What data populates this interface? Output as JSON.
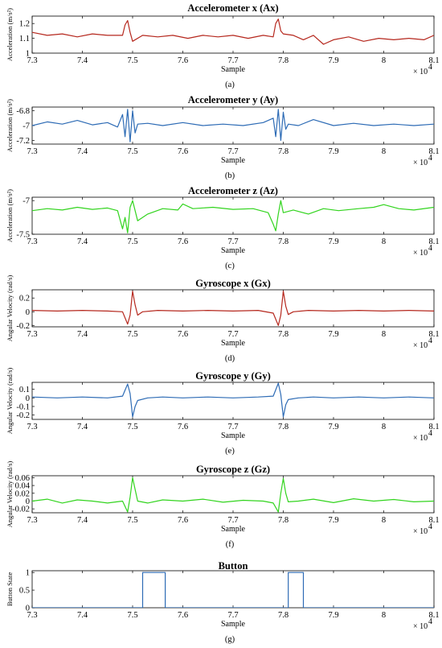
{
  "chart_data": [
    {
      "type": "line",
      "title": "Accelerometer x (Ax)",
      "xlabel": "Sample",
      "ylabel": "Acceleration (m/s²)",
      "x_multiplier": "× 10",
      "x_exponent": "4",
      "caption": "(a)",
      "xlim": [
        7.3,
        8.1
      ],
      "ylim": [
        1.0,
        1.25
      ],
      "xticks": [
        "7.3",
        "7.4",
        "7.5",
        "7.6",
        "7.7",
        "7.8",
        "7.9",
        "8",
        "8.1"
      ],
      "yticks": [
        "1",
        "1.1",
        "1.2"
      ],
      "ytick_values": [
        1.0,
        1.1,
        1.2
      ],
      "color": "#b5271d",
      "series": [
        {
          "x": [
            7.3,
            7.33,
            7.36,
            7.39,
            7.42,
            7.45,
            7.48,
            7.485,
            7.49,
            7.495,
            7.5,
            7.52,
            7.55,
            7.58,
            7.61,
            7.64,
            7.67,
            7.7,
            7.73,
            7.76,
            7.78,
            7.785,
            7.79,
            7.795,
            7.8,
            7.82,
            7.84,
            7.86,
            7.88,
            7.9,
            7.93,
            7.96,
            7.99,
            8.02,
            8.05,
            8.08,
            8.1
          ],
          "values": [
            1.14,
            1.12,
            1.13,
            1.11,
            1.13,
            1.12,
            1.12,
            1.19,
            1.22,
            1.14,
            1.08,
            1.12,
            1.11,
            1.12,
            1.1,
            1.12,
            1.11,
            1.12,
            1.1,
            1.12,
            1.11,
            1.2,
            1.23,
            1.15,
            1.13,
            1.12,
            1.09,
            1.12,
            1.06,
            1.09,
            1.11,
            1.08,
            1.1,
            1.09,
            1.1,
            1.09,
            1.12
          ]
        }
      ]
    },
    {
      "type": "line",
      "title": "Accelerometer y (Ay)",
      "xlabel": "Sample",
      "ylabel": "Acceleration (m/s²)",
      "x_multiplier": "× 10",
      "x_exponent": "4",
      "caption": "(b)",
      "xlim": [
        7.3,
        8.1
      ],
      "ylim": [
        -7.25,
        -6.75
      ],
      "xticks": [
        "7.3",
        "7.4",
        "7.5",
        "7.6",
        "7.7",
        "7.8",
        "7.9",
        "8",
        "8.1"
      ],
      "yticks": [
        "-6.8",
        "-7",
        "-7.2"
      ],
      "ytick_values": [
        -6.8,
        -7.0,
        -7.2
      ],
      "color": "#2d6bb5",
      "series": [
        {
          "x": [
            7.3,
            7.33,
            7.36,
            7.39,
            7.42,
            7.45,
            7.47,
            7.48,
            7.485,
            7.49,
            7.495,
            7.5,
            7.505,
            7.51,
            7.53,
            7.56,
            7.6,
            7.64,
            7.68,
            7.72,
            7.76,
            7.78,
            7.785,
            7.79,
            7.795,
            7.8,
            7.805,
            7.81,
            7.83,
            7.86,
            7.9,
            7.94,
            7.98,
            8.02,
            8.06,
            8.1
          ],
          "values": [
            -7.0,
            -6.95,
            -6.98,
            -6.93,
            -6.99,
            -6.96,
            -7.02,
            -6.85,
            -7.15,
            -6.78,
            -7.22,
            -6.8,
            -7.1,
            -6.98,
            -6.97,
            -7.0,
            -6.96,
            -7.0,
            -6.98,
            -7.0,
            -6.96,
            -6.9,
            -7.15,
            -6.78,
            -7.2,
            -6.82,
            -7.05,
            -6.98,
            -7.0,
            -6.92,
            -7.0,
            -6.97,
            -7.0,
            -6.98,
            -7.0,
            -6.98
          ]
        }
      ]
    },
    {
      "type": "line",
      "title": "Accelerometer z (Az)",
      "xlabel": "Sample",
      "ylabel": "Acceleration (m/s²)",
      "x_multiplier": "× 10",
      "x_exponent": "4",
      "caption": "(c)",
      "xlim": [
        7.3,
        8.1
      ],
      "ylim": [
        -7.5,
        -6.95
      ],
      "xticks": [
        "7.3",
        "7.4",
        "7.5",
        "7.6",
        "7.7",
        "7.8",
        "7.9",
        "8",
        "8.1"
      ],
      "yticks": [
        "-7",
        "-7.5"
      ],
      "ytick_values": [
        -7.0,
        -7.5
      ],
      "color": "#32d41e",
      "series": [
        {
          "x": [
            7.3,
            7.33,
            7.36,
            7.39,
            7.42,
            7.45,
            7.47,
            7.48,
            7.485,
            7.49,
            7.495,
            7.5,
            7.51,
            7.53,
            7.56,
            7.59,
            7.6,
            7.62,
            7.66,
            7.7,
            7.74,
            7.77,
            7.78,
            7.785,
            7.79,
            7.795,
            7.8,
            7.82,
            7.85,
            7.88,
            7.91,
            7.95,
            7.98,
            8.0,
            8.03,
            8.06,
            8.1
          ],
          "values": [
            -7.15,
            -7.12,
            -7.14,
            -7.1,
            -7.13,
            -7.11,
            -7.15,
            -7.42,
            -7.25,
            -7.48,
            -7.1,
            -7.0,
            -7.3,
            -7.2,
            -7.12,
            -7.14,
            -7.05,
            -7.12,
            -7.1,
            -7.13,
            -7.12,
            -7.18,
            -7.35,
            -7.45,
            -7.2,
            -7.0,
            -7.18,
            -7.14,
            -7.2,
            -7.12,
            -7.15,
            -7.12,
            -7.1,
            -7.06,
            -7.12,
            -7.14,
            -7.1
          ]
        }
      ]
    },
    {
      "type": "line",
      "title": "Gyroscope x (Gx)",
      "xlabel": "Sample",
      "ylabel": "Angular Velocity (rad/s)",
      "x_multiplier": "× 10",
      "x_exponent": "4",
      "caption": "(d)",
      "xlim": [
        7.3,
        8.1
      ],
      "ylim": [
        -0.22,
        0.32
      ],
      "xticks": [
        "7.3",
        "7.4",
        "7.5",
        "7.6",
        "7.7",
        "7.8",
        "7.9",
        "8",
        "8.1"
      ],
      "yticks": [
        "0.2",
        "0",
        "-0.2"
      ],
      "ytick_values": [
        0.2,
        0.0,
        -0.2
      ],
      "color": "#b5271d",
      "series": [
        {
          "x": [
            7.3,
            7.35,
            7.4,
            7.45,
            7.48,
            7.49,
            7.495,
            7.5,
            7.505,
            7.51,
            7.52,
            7.55,
            7.6,
            7.65,
            7.7,
            7.75,
            7.78,
            7.79,
            7.795,
            7.8,
            7.805,
            7.81,
            7.82,
            7.85,
            7.9,
            7.95,
            8.0,
            8.05,
            8.1
          ],
          "values": [
            0.02,
            0.01,
            0.02,
            0.01,
            0.0,
            -0.18,
            -0.05,
            0.3,
            0.1,
            -0.05,
            0.0,
            0.02,
            0.01,
            0.02,
            0.01,
            0.02,
            -0.02,
            -0.2,
            -0.05,
            0.3,
            0.08,
            -0.04,
            0.0,
            0.02,
            0.01,
            0.02,
            0.01,
            0.02,
            0.01
          ]
        }
      ]
    },
    {
      "type": "line",
      "title": "Gyroscope y (Gy)",
      "xlabel": "Sample",
      "ylabel": "Angular Velocity (rad/s)",
      "x_multiplier": "× 10",
      "x_exponent": "4",
      "caption": "(e)",
      "xlim": [
        7.3,
        8.1
      ],
      "ylim": [
        -0.25,
        0.18
      ],
      "xticks": [
        "7.3",
        "7.4",
        "7.5",
        "7.6",
        "7.7",
        "7.8",
        "7.9",
        "8",
        "8.1"
      ],
      "yticks": [
        "0.1",
        "0",
        "-0.1",
        "-0.2"
      ],
      "ytick_values": [
        0.1,
        0.0,
        -0.1,
        -0.2
      ],
      "color": "#2d6bb5",
      "series": [
        {
          "x": [
            7.3,
            7.35,
            7.4,
            7.45,
            7.48,
            7.49,
            7.495,
            7.5,
            7.505,
            7.51,
            7.53,
            7.56,
            7.6,
            7.65,
            7.7,
            7.75,
            7.78,
            7.79,
            7.795,
            7.8,
            7.805,
            7.81,
            7.83,
            7.86,
            7.9,
            7.95,
            8.0,
            8.05,
            8.1
          ],
          "values": [
            0.01,
            0.0,
            0.01,
            0.0,
            0.02,
            0.16,
            0.05,
            -0.22,
            -0.1,
            -0.03,
            0.0,
            0.01,
            0.0,
            0.01,
            0.0,
            0.01,
            0.02,
            0.17,
            0.04,
            -0.22,
            -0.08,
            -0.02,
            0.0,
            0.01,
            0.0,
            0.01,
            0.0,
            0.01,
            0.0
          ]
        }
      ]
    },
    {
      "type": "line",
      "title": "Gyroscope z (Gz)",
      "xlabel": "Sample",
      "ylabel": "Angular Velocity (rad/s)",
      "x_multiplier": "× 10",
      "x_exponent": "4",
      "caption": "(f)",
      "xlim": [
        7.3,
        8.1
      ],
      "ylim": [
        -0.03,
        0.065
      ],
      "xticks": [
        "7.3",
        "7.4",
        "7.5",
        "7.6",
        "7.7",
        "7.8",
        "7.9",
        "8",
        "8.1"
      ],
      "yticks": [
        "0.06",
        "0.04",
        "0.02",
        "0",
        "-0.02"
      ],
      "ytick_values": [
        0.06,
        0.04,
        0.02,
        0.0,
        -0.02
      ],
      "color": "#32d41e",
      "series": [
        {
          "x": [
            7.3,
            7.33,
            7.36,
            7.39,
            7.42,
            7.45,
            7.48,
            7.49,
            7.495,
            7.5,
            7.505,
            7.51,
            7.53,
            7.56,
            7.6,
            7.64,
            7.68,
            7.72,
            7.76,
            7.78,
            7.79,
            7.795,
            7.8,
            7.805,
            7.81,
            7.83,
            7.86,
            7.9,
            7.94,
            7.98,
            8.02,
            8.06,
            8.1
          ],
          "values": [
            0.0,
            0.005,
            -0.005,
            0.003,
            0.0,
            -0.005,
            0.0,
            -0.028,
            0.01,
            0.06,
            0.03,
            0.0,
            -0.005,
            0.003,
            0.0,
            0.005,
            -0.003,
            0.002,
            0.0,
            -0.005,
            -0.028,
            0.02,
            0.058,
            0.02,
            -0.002,
            0.0,
            0.005,
            -0.004,
            0.006,
            0.0,
            0.004,
            -0.002,
            0.0
          ]
        }
      ]
    },
    {
      "type": "line",
      "title": "Button",
      "xlabel": "Sample",
      "ylabel": "Button State",
      "x_multiplier": "× 10",
      "x_exponent": "4",
      "caption": "(g)",
      "xlim": [
        7.3,
        8.1
      ],
      "ylim": [
        0,
        1.05
      ],
      "xticks": [
        "7.3",
        "7.4",
        "7.5",
        "7.6",
        "7.7",
        "7.8",
        "7.9",
        "8",
        "8.1"
      ],
      "yticks": [
        "1",
        "0.5",
        "0"
      ],
      "ytick_values": [
        1.0,
        0.5,
        0.0
      ],
      "color": "#2d6bb5",
      "series": [
        {
          "x": [
            7.3,
            7.52,
            7.52,
            7.565,
            7.565,
            7.81,
            7.81,
            7.84,
            7.84,
            8.1
          ],
          "values": [
            0,
            0,
            1,
            1,
            0,
            0,
            1,
            1,
            0,
            0
          ]
        }
      ]
    }
  ]
}
